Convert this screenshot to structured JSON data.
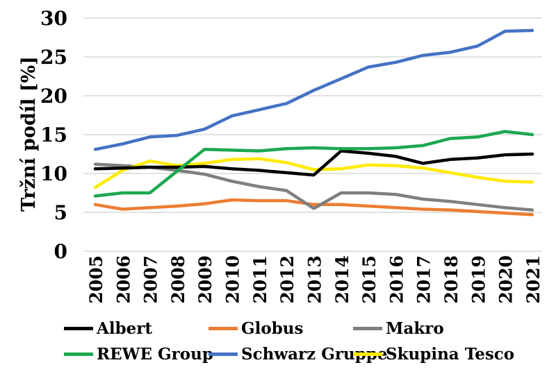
{
  "chart_data": {
    "type": "line",
    "title": "",
    "xlabel": "",
    "ylabel": "Tržní podíl [%]",
    "ylim": [
      0,
      30
    ],
    "yticks": [
      0,
      5,
      10,
      15,
      20,
      25,
      30
    ],
    "grid": true,
    "gridline_color": "#D9D9D9",
    "legend_position": "bottom",
    "x": [
      "2005",
      "2006",
      "2007",
      "2008",
      "2009",
      "2010",
      "2011",
      "2012",
      "2013",
      "2014",
      "2015",
      "2016",
      "2017",
      "2018",
      "2019",
      "2020",
      "2021"
    ],
    "series": [
      {
        "name": "Albert",
        "color": "#000000",
        "values": [
          10.6,
          10.7,
          10.8,
          10.8,
          10.9,
          10.6,
          10.4,
          10.1,
          9.8,
          12.9,
          12.6,
          12.2,
          11.3,
          11.8,
          12.0,
          12.4,
          12.5
        ]
      },
      {
        "name": "Globus",
        "color": "#ED7D31",
        "values": [
          6.0,
          5.4,
          5.6,
          5.8,
          6.1,
          6.6,
          6.5,
          6.5,
          6.0,
          6.0,
          5.8,
          5.6,
          5.4,
          5.3,
          5.1,
          4.9,
          4.7
        ]
      },
      {
        "name": "Makro",
        "color": "#7F7F7F",
        "values": [
          11.2,
          11.0,
          10.8,
          10.4,
          9.9,
          9.0,
          8.3,
          7.8,
          5.5,
          7.5,
          7.5,
          7.3,
          6.7,
          6.4,
          6.0,
          5.6,
          5.3
        ]
      },
      {
        "name": "REWE Group",
        "color": "#1CA850",
        "values": [
          7.1,
          7.5,
          7.5,
          10.3,
          13.1,
          13.0,
          12.9,
          13.2,
          13.3,
          13.2,
          13.2,
          13.3,
          13.6,
          14.5,
          14.7,
          15.4,
          15.0
        ]
      },
      {
        "name": "Schwarz Gruppe",
        "color": "#4472C4",
        "values": [
          13.1,
          13.8,
          14.7,
          14.9,
          15.7,
          17.4,
          18.2,
          19.0,
          20.7,
          22.2,
          23.7,
          24.3,
          25.2,
          25.6,
          26.4,
          28.3,
          28.4
        ]
      },
      {
        "name": "Skupina Tesco",
        "color": "#FFEB00",
        "values": [
          8.2,
          10.4,
          11.6,
          11.0,
          11.3,
          11.8,
          11.9,
          11.4,
          10.5,
          10.6,
          11.1,
          11.0,
          10.7,
          10.1,
          9.5,
          9.0,
          8.9
        ]
      }
    ]
  }
}
